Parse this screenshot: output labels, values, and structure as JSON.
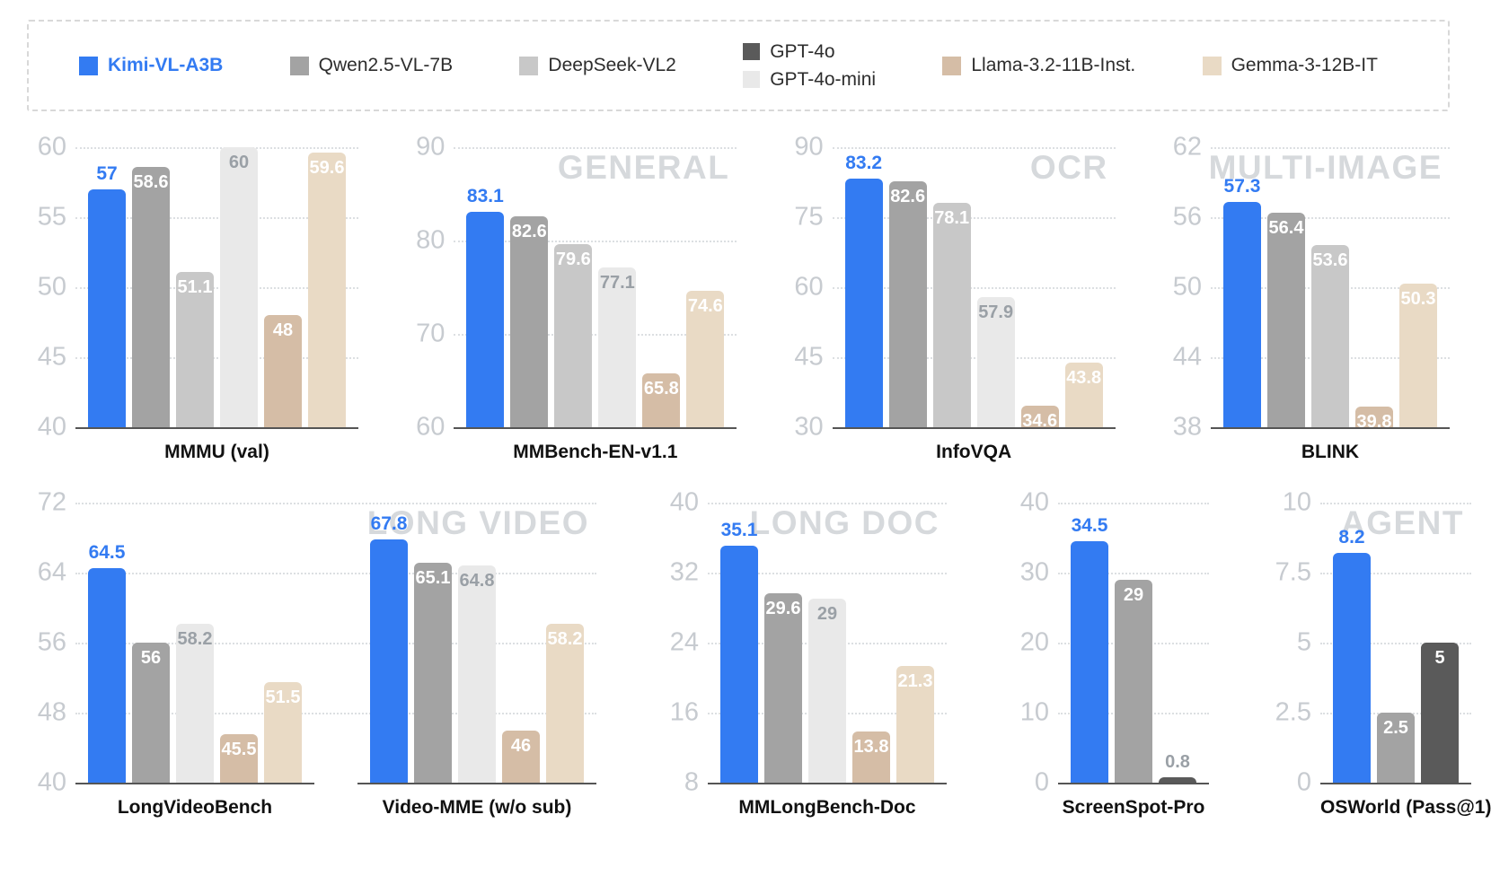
{
  "palette": {
    "kimi": "#337bf2",
    "qwen": "#a3a3a3",
    "deepseek": "#c8c8c8",
    "gpt4o": "#5a5a5a",
    "gpt4o_mini": "#e9e9e9",
    "llama": "#d5bda6",
    "gemma": "#e9dac5"
  },
  "style_colors": {
    "tick_label": "#c7cbd0",
    "gridline": "#dcdfe2",
    "baseline": "#555555",
    "watermark": "#d6d9dc",
    "muted_value_label": "#9aa0a6",
    "white_value_label": "#ffffff",
    "title": "#111111"
  },
  "legend": {
    "columns": [
      [
        {
          "key": "kimi",
          "label": "Kimi-VL-A3B",
          "highlight": true
        }
      ],
      [
        {
          "key": "qwen",
          "label": "Qwen2.5-VL-7B"
        }
      ],
      [
        {
          "key": "deepseek",
          "label": "DeepSeek-VL2"
        }
      ],
      [
        {
          "key": "gpt4o",
          "label": "GPT-4o"
        },
        {
          "key": "gpt4o_mini",
          "label": "GPT-4o-mini"
        }
      ],
      [
        {
          "key": "llama",
          "label": "Llama-3.2-11B-Inst."
        }
      ],
      [
        {
          "key": "gemma",
          "label": "Gemma-3-12B-IT"
        }
      ]
    ]
  },
  "chart_data": [
    {
      "type": "bar",
      "title": "MMMU (val)",
      "watermark": null,
      "ylim": [
        40,
        60
      ],
      "yticks": [
        40,
        45,
        50,
        55,
        60
      ],
      "bars": [
        {
          "model": "Kimi-VL-A3B",
          "key": "kimi",
          "value": 57,
          "label": "57",
          "label_above": true
        },
        {
          "model": "Qwen2.5-VL-7B",
          "key": "qwen",
          "value": 58.6,
          "label": "58.6"
        },
        {
          "model": "DeepSeek-VL2",
          "key": "deepseek",
          "value": 51.1,
          "label": "51.1"
        },
        {
          "model": "GPT-4o-mini",
          "key": "gpt4o_mini",
          "value": 60,
          "label": "60"
        },
        {
          "model": "Llama-3.2-11B-Inst.",
          "key": "llama",
          "value": 48,
          "label": "48"
        },
        {
          "model": "Gemma-3-12B-IT",
          "key": "gemma",
          "value": 59.6,
          "label": "59.6"
        }
      ]
    },
    {
      "type": "bar",
      "title": "MMBench-EN-v1.1",
      "watermark": "GENERAL",
      "ylim": [
        60,
        90
      ],
      "yticks": [
        60,
        70,
        80,
        90
      ],
      "bars": [
        {
          "model": "Kimi-VL-A3B",
          "key": "kimi",
          "value": 83.1,
          "label": "83.1",
          "label_above": true
        },
        {
          "model": "Qwen2.5-VL-7B",
          "key": "qwen",
          "value": 82.6,
          "label": "82.6"
        },
        {
          "model": "DeepSeek-VL2",
          "key": "deepseek",
          "value": 79.6,
          "label": "79.6"
        },
        {
          "model": "GPT-4o-mini",
          "key": "gpt4o_mini",
          "value": 77.1,
          "label": "77.1"
        },
        {
          "model": "Llama-3.2-11B-Inst.",
          "key": "llama",
          "value": 65.8,
          "label": "65.8"
        },
        {
          "model": "Gemma-3-12B-IT",
          "key": "gemma",
          "value": 74.6,
          "label": "74.6"
        }
      ]
    },
    {
      "type": "bar",
      "title": "InfoVQA",
      "watermark": "OCR",
      "ylim": [
        30,
        90
      ],
      "yticks": [
        30,
        45,
        60,
        75,
        90
      ],
      "bars": [
        {
          "model": "Kimi-VL-A3B",
          "key": "kimi",
          "value": 83.2,
          "label": "83.2",
          "label_above": true
        },
        {
          "model": "Qwen2.5-VL-7B",
          "key": "qwen",
          "value": 82.6,
          "label": "82.6"
        },
        {
          "model": "DeepSeek-VL2",
          "key": "deepseek",
          "value": 78.1,
          "label": "78.1"
        },
        {
          "model": "GPT-4o-mini",
          "key": "gpt4o_mini",
          "value": 57.9,
          "label": "57.9"
        },
        {
          "model": "Llama-3.2-11B-Inst.",
          "key": "llama",
          "value": 34.6,
          "label": "34.6"
        },
        {
          "model": "Gemma-3-12B-IT",
          "key": "gemma",
          "value": 43.8,
          "label": "43.8"
        }
      ]
    },
    {
      "type": "bar",
      "title": "BLINK",
      "watermark": "MULTI-IMAGE",
      "ylim": [
        38,
        62
      ],
      "yticks": [
        38,
        44,
        50,
        56,
        62
      ],
      "bars": [
        {
          "model": "Kimi-VL-A3B",
          "key": "kimi",
          "value": 57.3,
          "label": "57.3",
          "label_above": true
        },
        {
          "model": "Qwen2.5-VL-7B",
          "key": "qwen",
          "value": 56.4,
          "label": "56.4"
        },
        {
          "model": "DeepSeek-VL2",
          "key": "deepseek",
          "value": 53.6,
          "label": "53.6"
        },
        {
          "model": "Llama-3.2-11B-Inst.",
          "key": "llama",
          "value": 39.8,
          "label": "39.8"
        },
        {
          "model": "Gemma-3-12B-IT",
          "key": "gemma",
          "value": 50.3,
          "label": "50.3"
        }
      ]
    },
    {
      "type": "bar",
      "title": "LongVideoBench",
      "watermark": null,
      "ylim": [
        40,
        72
      ],
      "yticks": [
        40,
        48,
        56,
        64,
        72
      ],
      "bars": [
        {
          "model": "Kimi-VL-A3B",
          "key": "kimi",
          "value": 64.5,
          "label": "64.5",
          "label_above": true
        },
        {
          "model": "Qwen2.5-VL-7B",
          "key": "qwen",
          "value": 56,
          "label": "56"
        },
        {
          "model": "GPT-4o-mini",
          "key": "gpt4o_mini",
          "value": 58.2,
          "label": "58.2"
        },
        {
          "model": "Llama-3.2-11B-Inst.",
          "key": "llama",
          "value": 45.5,
          "label": "45.5"
        },
        {
          "model": "Gemma-3-12B-IT",
          "key": "gemma",
          "value": 51.5,
          "label": "51.5"
        }
      ]
    },
    {
      "type": "bar",
      "title": "Video-MME (w/o sub)",
      "watermark": "LONG VIDEO",
      "ylim": [
        40,
        72
      ],
      "yticks": [
        40,
        48,
        56,
        64,
        72
      ],
      "bars": [
        {
          "model": "Kimi-VL-A3B",
          "key": "kimi",
          "value": 67.8,
          "label": "67.8",
          "label_above": true
        },
        {
          "model": "Qwen2.5-VL-7B",
          "key": "qwen",
          "value": 65.1,
          "label": "65.1"
        },
        {
          "model": "GPT-4o-mini",
          "key": "gpt4o_mini",
          "value": 64.8,
          "label": "64.8"
        },
        {
          "model": "Llama-3.2-11B-Inst.",
          "key": "llama",
          "value": 46,
          "label": "46"
        },
        {
          "model": "Gemma-3-12B-IT",
          "key": "gemma",
          "value": 58.2,
          "label": "58.2"
        }
      ]
    },
    {
      "type": "bar",
      "title": "MMLongBench-Doc",
      "watermark": "LONG DOC",
      "ylim": [
        8,
        40
      ],
      "yticks": [
        8,
        16,
        24,
        32,
        40
      ],
      "bars": [
        {
          "model": "Kimi-VL-A3B",
          "key": "kimi",
          "value": 35.1,
          "label": "35.1",
          "label_above": true
        },
        {
          "model": "Qwen2.5-VL-7B",
          "key": "qwen",
          "value": 29.6,
          "label": "29.6"
        },
        {
          "model": "GPT-4o-mini",
          "key": "gpt4o_mini",
          "value": 29,
          "label": "29"
        },
        {
          "model": "Llama-3.2-11B-Inst.",
          "key": "llama",
          "value": 13.8,
          "label": "13.8"
        },
        {
          "model": "Gemma-3-12B-IT",
          "key": "gemma",
          "value": 21.3,
          "label": "21.3"
        }
      ]
    },
    {
      "type": "bar",
      "title": "ScreenSpot-Pro",
      "watermark": null,
      "ylim": [
        0,
        40
      ],
      "yticks": [
        0,
        10,
        20,
        30,
        40
      ],
      "bars": [
        {
          "model": "Kimi-VL-A3B",
          "key": "kimi",
          "value": 34.5,
          "label": "34.5",
          "label_above": true
        },
        {
          "model": "Qwen2.5-VL-7B",
          "key": "qwen",
          "value": 29,
          "label": "29"
        },
        {
          "model": "GPT-4o",
          "key": "gpt4o",
          "value": 0.8,
          "label": "0.8",
          "label_above": true
        }
      ]
    },
    {
      "type": "bar",
      "title": "OSWorld (Pass@1)",
      "watermark": "AGENT",
      "ylim": [
        0,
        10
      ],
      "yticks": [
        0,
        2.5,
        5,
        7.5,
        10
      ],
      "bars": [
        {
          "model": "Kimi-VL-A3B",
          "key": "kimi",
          "value": 8.2,
          "label": "8.2",
          "label_above": true
        },
        {
          "model": "Qwen2.5-VL-7B",
          "key": "qwen",
          "value": 2.5,
          "label": "2.5"
        },
        {
          "model": "GPT-4o",
          "key": "gpt4o",
          "value": 5,
          "label": "5"
        }
      ]
    }
  ],
  "layout": {
    "rows": [
      [
        [
          0
        ],
        [
          1
        ],
        [
          2
        ],
        [
          3
        ]
      ],
      [
        [
          4,
          5
        ],
        [
          6
        ],
        [
          7
        ],
        [
          8
        ]
      ]
    ]
  }
}
